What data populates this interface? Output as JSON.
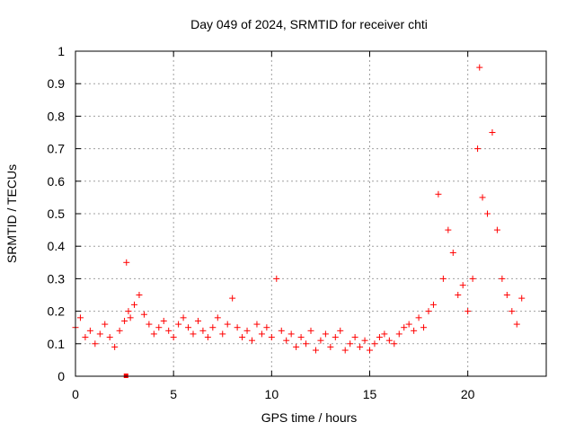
{
  "chart_data": {
    "type": "scatter",
    "title": "Day 049 of 2024, SRMTID for receiver chti",
    "xlabel": "GPS time / hours",
    "ylabel": "SRMTID / TECUs",
    "xlim": [
      0,
      24.0
    ],
    "ylim": [
      0,
      1
    ],
    "xticks": [
      0,
      5,
      10,
      15,
      20
    ],
    "xtick_labels": [
      "0",
      "5",
      "10",
      "15",
      "20"
    ],
    "yticks": [
      0,
      0.1,
      0.2,
      0.3,
      0.4,
      0.5,
      0.6,
      0.7,
      0.8,
      0.9,
      1
    ],
    "ytick_labels": [
      "0",
      "0.1",
      "0.2",
      "0.3",
      "0.4",
      "0.5",
      "0.6",
      "0.7",
      "0.8",
      "0.9",
      "1"
    ],
    "grid": true,
    "marker": "plus",
    "series_color": "#ff0000",
    "series": [
      {
        "name": "SRMTID",
        "x": [
          0.0,
          0.25,
          0.5,
          0.75,
          1.0,
          1.25,
          1.5,
          1.75,
          2.0,
          2.25,
          2.5,
          2.6,
          2.7,
          2.8,
          3.0,
          3.25,
          3.5,
          3.75,
          4.0,
          4.25,
          4.5,
          4.75,
          5.0,
          5.25,
          5.5,
          5.75,
          6.0,
          6.25,
          6.5,
          6.75,
          7.0,
          7.25,
          7.5,
          7.75,
          8.0,
          8.25,
          8.5,
          8.75,
          9.0,
          9.25,
          9.5,
          9.75,
          10.0,
          10.25,
          10.5,
          10.75,
          11.0,
          11.25,
          11.5,
          11.75,
          12.0,
          12.25,
          12.5,
          12.75,
          13.0,
          13.25,
          13.5,
          13.75,
          14.0,
          14.25,
          14.5,
          14.75,
          15.0,
          15.25,
          15.5,
          15.75,
          16.0,
          16.25,
          16.5,
          16.75,
          17.0,
          17.25,
          17.5,
          17.75,
          18.0,
          18.25,
          18.5,
          18.75,
          19.0,
          19.25,
          19.5,
          19.75,
          20.0,
          20.25,
          20.5,
          20.6,
          20.75,
          21.0,
          21.25,
          21.5,
          21.75,
          22.0,
          22.25,
          22.5,
          22.75
        ],
        "y": [
          0.15,
          0.18,
          0.12,
          0.14,
          0.1,
          0.13,
          0.16,
          0.12,
          0.09,
          0.14,
          0.17,
          0.35,
          0.2,
          0.18,
          0.22,
          0.25,
          0.19,
          0.16,
          0.13,
          0.15,
          0.17,
          0.14,
          0.12,
          0.16,
          0.18,
          0.15,
          0.13,
          0.17,
          0.14,
          0.12,
          0.15,
          0.18,
          0.13,
          0.16,
          0.24,
          0.15,
          0.12,
          0.14,
          0.11,
          0.16,
          0.13,
          0.15,
          0.12,
          0.3,
          0.14,
          0.11,
          0.13,
          0.09,
          0.12,
          0.1,
          0.14,
          0.08,
          0.11,
          0.13,
          0.09,
          0.12,
          0.14,
          0.08,
          0.1,
          0.12,
          0.09,
          0.11,
          0.08,
          0.1,
          0.12,
          0.13,
          0.11,
          0.1,
          0.13,
          0.15,
          0.16,
          0.14,
          0.18,
          0.15,
          0.2,
          0.22,
          0.56,
          0.3,
          0.45,
          0.38,
          0.25,
          0.28,
          0.2,
          0.3,
          0.7,
          0.95,
          0.55,
          0.5,
          0.75,
          0.45,
          0.3,
          0.25,
          0.2,
          0.16,
          0.24
        ]
      }
    ],
    "outliers": [
      {
        "x": 2.6,
        "y": 0.0
      }
    ]
  }
}
